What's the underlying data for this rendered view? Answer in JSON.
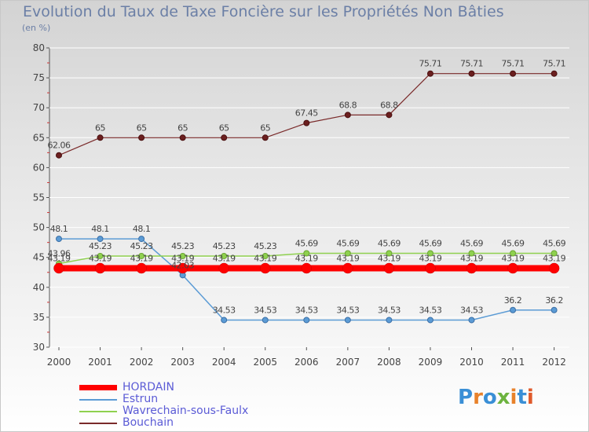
{
  "header": {
    "title": "Evolution du Taux de Taxe Foncière sur les Propriétés Non Bâties",
    "unit": "(en %)"
  },
  "logo": {
    "text": "Proxiti",
    "colors": [
      "#3a8fd6",
      "#e8822b",
      "#3a8fd6",
      "#6db33f",
      "#e8822b",
      "#3a8fd6",
      "#e05a2b"
    ]
  },
  "chart_data": {
    "type": "line",
    "title": "Evolution du Taux de Taxe Foncière sur les Propriétés Non Bâties",
    "ylabel": "(en %)",
    "xlabel": "",
    "ylim": [
      30,
      80
    ],
    "yticks": [
      30,
      35,
      40,
      45,
      50,
      55,
      60,
      65,
      70,
      75,
      80
    ],
    "categories": [
      "2000",
      "2001",
      "2002",
      "2003",
      "2004",
      "2005",
      "2006",
      "2007",
      "2008",
      "2009",
      "2010",
      "2011",
      "2012"
    ],
    "series": [
      {
        "name": "HORDAIN",
        "color": "#ff0000",
        "values": [
          43.19,
          43.19,
          43.19,
          43.19,
          43.19,
          43.19,
          43.19,
          43.19,
          43.19,
          43.19,
          43.19,
          43.19,
          43.19
        ],
        "labels": [
          "43.19",
          "43.19",
          "43.19",
          "43.19",
          "43.19",
          "43.19",
          "43.19",
          "43.19",
          "43.19",
          "43.19",
          "43.19",
          "43.19",
          "43.19"
        ]
      },
      {
        "name": "Estrun",
        "color": "#5b9bd5",
        "values": [
          48.1,
          48.1,
          48.1,
          42.03,
          34.53,
          34.53,
          34.53,
          34.53,
          34.53,
          34.53,
          34.53,
          36.2,
          36.2
        ],
        "labels": [
          "48.1",
          "48.1",
          "48.1",
          "42.03",
          "34.53",
          "34.53",
          "34.53",
          "34.53",
          "34.53",
          "34.53",
          "34.53",
          "36.2",
          "36.2"
        ]
      },
      {
        "name": "Wavrechain-sous-Faulx",
        "color": "#8fd14f",
        "values": [
          43.96,
          45.23,
          45.23,
          45.23,
          45.23,
          45.23,
          45.69,
          45.69,
          45.69,
          45.69,
          45.69,
          45.69,
          45.69
        ],
        "labels": [
          "43.96",
          "45.23",
          "45.23",
          "45.23",
          "45.23",
          "45.23",
          "45.69",
          "45.69",
          "45.69",
          "45.69",
          "45.69",
          "45.69",
          "45.69"
        ]
      },
      {
        "name": "Bouchain",
        "color": "#7a2a2a",
        "values": [
          62.06,
          65,
          65,
          65,
          65,
          65,
          67.45,
          68.8,
          68.8,
          75.71,
          75.71,
          75.71,
          75.71
        ],
        "labels": [
          "62.06",
          "65",
          "65",
          "65",
          "65",
          "65",
          "67.45",
          "68.8",
          "68.8",
          "75.71",
          "75.71",
          "75.71",
          "75.71"
        ]
      }
    ]
  }
}
